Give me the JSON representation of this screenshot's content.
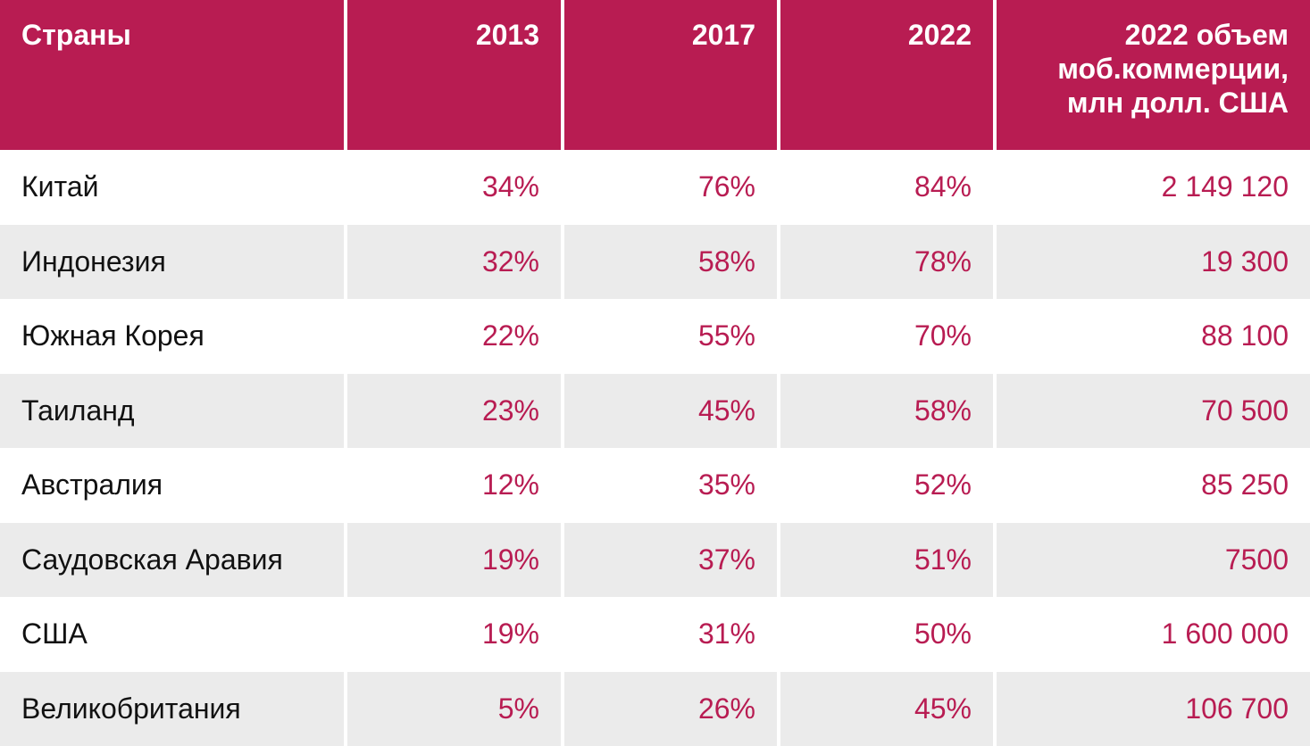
{
  "table": {
    "header": [
      "Страны",
      "2013",
      "2017",
      "2022",
      [
        "2022 объем",
        "моб.коммерции,",
        "млн долл. США"
      ]
    ],
    "rows": [
      [
        "Китай",
        "34%",
        "76%",
        "84%",
        "2 149 120"
      ],
      [
        "Индонезия",
        "32%",
        "58%",
        "78%",
        "19 300"
      ],
      [
        "Южная Корея",
        "22%",
        "55%",
        "70%",
        "88 100"
      ],
      [
        "Таиланд",
        "23%",
        "45%",
        "58%",
        "70 500"
      ],
      [
        "Австралия",
        "12%",
        "35%",
        "52%",
        "85 250"
      ],
      [
        "Саудовская Аравия",
        "19%",
        "37%",
        "51%",
        "7500"
      ],
      [
        "США",
        "19%",
        "31%",
        "50%",
        "1 600 000"
      ],
      [
        "Великобритания",
        "5%",
        "26%",
        "45%",
        "106 700"
      ]
    ]
  }
}
